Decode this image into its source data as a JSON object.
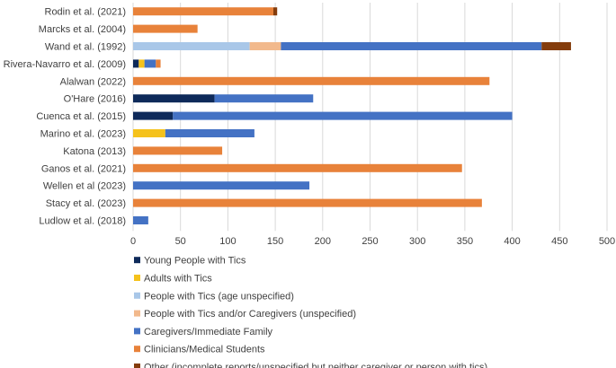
{
  "chart_data": {
    "type": "bar",
    "orientation": "horizontal",
    "stacked": true,
    "title": "",
    "xlabel": "",
    "ylabel": "",
    "xlim": [
      0,
      500
    ],
    "xticks": [
      0,
      50,
      100,
      150,
      200,
      250,
      300,
      350,
      400,
      450,
      500
    ],
    "grid": "vertical",
    "legend_position": "bottom",
    "categories": [
      "Rodin et al. (2021)",
      "Marcks et al. (2004)",
      "Wand et al. (1992)",
      "Rivera-Navarro et al. (2009)",
      "Alalwan (2022)",
      "O'Hare (2016)",
      "Cuenca et al. (2015)",
      "Marino et al. (2023)",
      "Katona (2013)",
      "Ganos et al. (2021)",
      "Wellen et al (2023)",
      "Stacy et al. (2023)",
      "Ludlow et al. (2018)"
    ],
    "series": [
      {
        "name": "Young People with Tics",
        "color": "#0e2a5a",
        "values": [
          0,
          0,
          0,
          6,
          0,
          86,
          42,
          0,
          0,
          0,
          0,
          0,
          0
        ]
      },
      {
        "name": "Adults with Tics",
        "color": "#f5c21b",
        "values": [
          0,
          0,
          0,
          6,
          0,
          0,
          0,
          34,
          0,
          0,
          0,
          0,
          0
        ]
      },
      {
        "name": "People with Tics (age unspecified)",
        "color": "#a9c7e8",
        "values": [
          0,
          0,
          123,
          0,
          0,
          0,
          0,
          0,
          0,
          0,
          0,
          0,
          0
        ]
      },
      {
        "name": "People with Tics and/or Caregivers (unspecified)",
        "color": "#f2b98c",
        "values": [
          0,
          0,
          33,
          0,
          0,
          0,
          0,
          0,
          0,
          0,
          0,
          0,
          0
        ]
      },
      {
        "name": "Caregivers/Immediate Family",
        "color": "#4472c4",
        "values": [
          0,
          0,
          275,
          12,
          0,
          104,
          358,
          94,
          0,
          0,
          186,
          0,
          16
        ]
      },
      {
        "name": "Clinicians/Medical Students",
        "color": "#e8823a",
        "values": [
          148,
          68,
          0,
          5,
          376,
          0,
          0,
          0,
          94,
          347,
          0,
          368,
          0
        ]
      },
      {
        "name": "Other (incomplete reports/unspecified but neither caregiver or person with tics)",
        "color": "#843c0c",
        "values": [
          4,
          0,
          31,
          0,
          0,
          0,
          0,
          0,
          0,
          0,
          0,
          0,
          0
        ]
      }
    ]
  }
}
